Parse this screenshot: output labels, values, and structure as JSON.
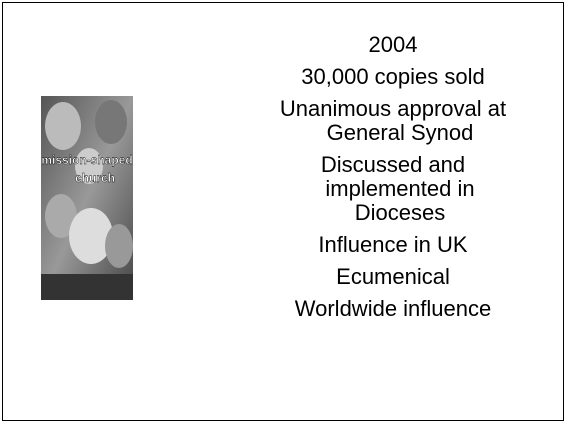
{
  "slide": {
    "cover": {
      "title_lines": [
        "mission-shaped",
        "church"
      ]
    },
    "items": [
      [
        "2004"
      ],
      [
        "30,000 copies sold"
      ],
      [
        "Unanimous approval at",
        "General Synod"
      ],
      [
        "Discussed and",
        "implemented in",
        "Dioceses"
      ],
      [
        "Influence in UK"
      ],
      [
        "Ecumenical"
      ],
      [
        "Worldwide influence"
      ]
    ]
  }
}
